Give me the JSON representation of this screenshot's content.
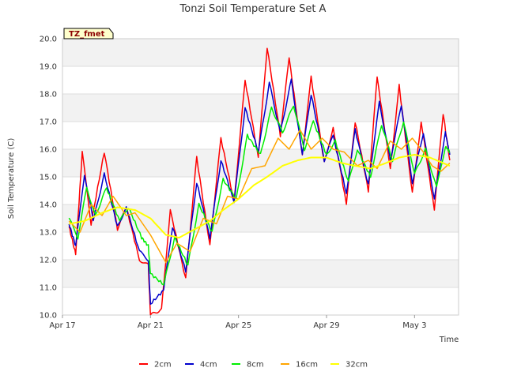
{
  "chart_data": {
    "type": "line",
    "title": "Tonzi Soil Temperature Set A",
    "xlabel": "Time",
    "ylabel": "Soil Temperature (C)",
    "badge": "TZ_fmet",
    "ylim": [
      10.0,
      20.0
    ],
    "xlim_days": [
      0,
      18
    ],
    "yticks": [
      "10.0",
      "11.0",
      "12.0",
      "13.0",
      "14.0",
      "15.0",
      "16.0",
      "17.0",
      "18.0",
      "19.0",
      "20.0"
    ],
    "xticks": [
      {
        "label": "Apr 17",
        "day": 0
      },
      {
        "label": "Apr 21",
        "day": 4
      },
      {
        "label": "Apr 25",
        "day": 8
      },
      {
        "label": "Apr 29",
        "day": 12
      },
      {
        "label": "May 3",
        "day": 16
      }
    ],
    "series": [
      {
        "name": "2cm",
        "color": "#ff0000",
        "points": [
          [
            0.3,
            13.2
          ],
          [
            0.6,
            12.2
          ],
          [
            0.9,
            15.9
          ],
          [
            1.3,
            13.3
          ],
          [
            1.9,
            15.9
          ],
          [
            2.5,
            13.1
          ],
          [
            2.9,
            13.9
          ],
          [
            3.5,
            12.0
          ],
          [
            3.9,
            11.8
          ],
          [
            4.0,
            10.0
          ],
          [
            4.5,
            10.2
          ],
          [
            4.9,
            13.8
          ],
          [
            5.6,
            11.3
          ],
          [
            6.1,
            15.7
          ],
          [
            6.7,
            12.5
          ],
          [
            7.2,
            16.4
          ],
          [
            7.8,
            14.1
          ],
          [
            8.3,
            18.5
          ],
          [
            8.9,
            15.7
          ],
          [
            9.3,
            19.7
          ],
          [
            9.9,
            16.5
          ],
          [
            10.3,
            19.3
          ],
          [
            10.9,
            15.8
          ],
          [
            11.3,
            18.6
          ],
          [
            11.9,
            15.5
          ],
          [
            12.3,
            16.8
          ],
          [
            12.9,
            14.0
          ],
          [
            13.3,
            17.0
          ],
          [
            13.9,
            14.5
          ],
          [
            14.3,
            18.6
          ],
          [
            14.9,
            15.3
          ],
          [
            15.3,
            18.3
          ],
          [
            15.9,
            14.4
          ],
          [
            16.3,
            17.0
          ],
          [
            16.9,
            13.8
          ],
          [
            17.3,
            17.3
          ],
          [
            17.6,
            15.6
          ]
        ]
      },
      {
        "name": "4cm",
        "color": "#0000cc",
        "points": [
          [
            0.3,
            13.3
          ],
          [
            0.6,
            12.5
          ],
          [
            1.0,
            15.1
          ],
          [
            1.4,
            13.4
          ],
          [
            1.9,
            15.1
          ],
          [
            2.5,
            13.2
          ],
          [
            2.9,
            13.9
          ],
          [
            3.5,
            12.3
          ],
          [
            3.9,
            12.0
          ],
          [
            4.0,
            10.4
          ],
          [
            4.6,
            10.9
          ],
          [
            5.0,
            13.2
          ],
          [
            5.6,
            11.6
          ],
          [
            6.1,
            14.8
          ],
          [
            6.7,
            12.8
          ],
          [
            7.2,
            15.6
          ],
          [
            7.8,
            14.1
          ],
          [
            8.3,
            17.5
          ],
          [
            8.9,
            15.9
          ],
          [
            9.4,
            18.4
          ],
          [
            9.9,
            16.6
          ],
          [
            10.4,
            18.5
          ],
          [
            10.9,
            15.8
          ],
          [
            11.3,
            18.0
          ],
          [
            11.9,
            15.6
          ],
          [
            12.3,
            16.5
          ],
          [
            12.9,
            14.4
          ],
          [
            13.3,
            16.7
          ],
          [
            13.9,
            14.7
          ],
          [
            14.4,
            17.7
          ],
          [
            14.9,
            15.6
          ],
          [
            15.4,
            17.6
          ],
          [
            15.9,
            14.8
          ],
          [
            16.4,
            16.6
          ],
          [
            16.9,
            14.2
          ],
          [
            17.4,
            16.6
          ],
          [
            17.6,
            15.8
          ]
        ]
      },
      {
        "name": "8cm",
        "color": "#00ee00",
        "points": [
          [
            0.3,
            13.5
          ],
          [
            0.7,
            12.8
          ],
          [
            1.1,
            14.6
          ],
          [
            1.5,
            13.6
          ],
          [
            2.0,
            14.6
          ],
          [
            2.6,
            13.4
          ],
          [
            3.0,
            13.9
          ],
          [
            3.6,
            12.8
          ],
          [
            3.9,
            12.5
          ],
          [
            4.0,
            11.5
          ],
          [
            4.6,
            11.1
          ],
          [
            5.1,
            12.8
          ],
          [
            5.7,
            11.8
          ],
          [
            6.2,
            14.0
          ],
          [
            6.8,
            13.0
          ],
          [
            7.3,
            14.9
          ],
          [
            7.9,
            14.2
          ],
          [
            8.4,
            16.5
          ],
          [
            9.0,
            15.8
          ],
          [
            9.5,
            17.5
          ],
          [
            10.0,
            16.6
          ],
          [
            10.5,
            17.6
          ],
          [
            11.0,
            16.0
          ],
          [
            11.4,
            17.0
          ],
          [
            12.0,
            15.8
          ],
          [
            12.4,
            16.3
          ],
          [
            13.0,
            14.8
          ],
          [
            13.4,
            16.0
          ],
          [
            14.0,
            15.0
          ],
          [
            14.5,
            16.9
          ],
          [
            15.0,
            15.6
          ],
          [
            15.5,
            17.0
          ],
          [
            16.0,
            15.1
          ],
          [
            16.5,
            16.0
          ],
          [
            17.0,
            14.6
          ],
          [
            17.4,
            16.1
          ],
          [
            17.6,
            15.9
          ]
        ]
      },
      {
        "name": "16cm",
        "color": "#ffa500",
        "points": [
          [
            0.3,
            13.4
          ],
          [
            0.8,
            13.0
          ],
          [
            1.3,
            14.0
          ],
          [
            1.8,
            13.6
          ],
          [
            2.3,
            14.3
          ],
          [
            2.9,
            13.6
          ],
          [
            3.3,
            13.7
          ],
          [
            4.0,
            12.9
          ],
          [
            4.7,
            11.9
          ],
          [
            5.2,
            12.6
          ],
          [
            5.8,
            12.3
          ],
          [
            6.4,
            13.5
          ],
          [
            7.0,
            13.3
          ],
          [
            7.5,
            14.3
          ],
          [
            8.0,
            14.2
          ],
          [
            8.6,
            15.3
          ],
          [
            9.2,
            15.4
          ],
          [
            9.8,
            16.4
          ],
          [
            10.3,
            16.0
          ],
          [
            10.8,
            16.7
          ],
          [
            11.3,
            16.0
          ],
          [
            11.8,
            16.4
          ],
          [
            12.3,
            16.0
          ],
          [
            12.8,
            15.9
          ],
          [
            13.4,
            15.4
          ],
          [
            13.9,
            15.6
          ],
          [
            14.3,
            15.3
          ],
          [
            14.9,
            16.3
          ],
          [
            15.4,
            16.0
          ],
          [
            15.9,
            16.4
          ],
          [
            16.4,
            15.9
          ],
          [
            16.8,
            15.4
          ],
          [
            17.2,
            15.2
          ],
          [
            17.6,
            15.5
          ]
        ]
      },
      {
        "name": "32cm",
        "color": "#ffff00",
        "points": [
          [
            0.3,
            13.3
          ],
          [
            1.0,
            13.4
          ],
          [
            1.8,
            13.7
          ],
          [
            2.5,
            13.9
          ],
          [
            3.3,
            13.8
          ],
          [
            4.0,
            13.5
          ],
          [
            4.7,
            12.9
          ],
          [
            5.3,
            12.8
          ],
          [
            6.0,
            13.1
          ],
          [
            6.7,
            13.4
          ],
          [
            7.3,
            13.8
          ],
          [
            8.0,
            14.2
          ],
          [
            8.7,
            14.7
          ],
          [
            9.3,
            15.0
          ],
          [
            10.0,
            15.4
          ],
          [
            10.7,
            15.6
          ],
          [
            11.3,
            15.7
          ],
          [
            12.0,
            15.7
          ],
          [
            12.7,
            15.5
          ],
          [
            13.3,
            15.4
          ],
          [
            14.0,
            15.3
          ],
          [
            14.7,
            15.5
          ],
          [
            15.3,
            15.7
          ],
          [
            16.0,
            15.8
          ],
          [
            16.7,
            15.7
          ],
          [
            17.3,
            15.5
          ],
          [
            17.6,
            15.4
          ]
        ]
      }
    ],
    "legend": [
      "2cm",
      "4cm",
      "8cm",
      "16cm",
      "32cm"
    ],
    "grid": true,
    "legend_position": "bottom-center"
  }
}
